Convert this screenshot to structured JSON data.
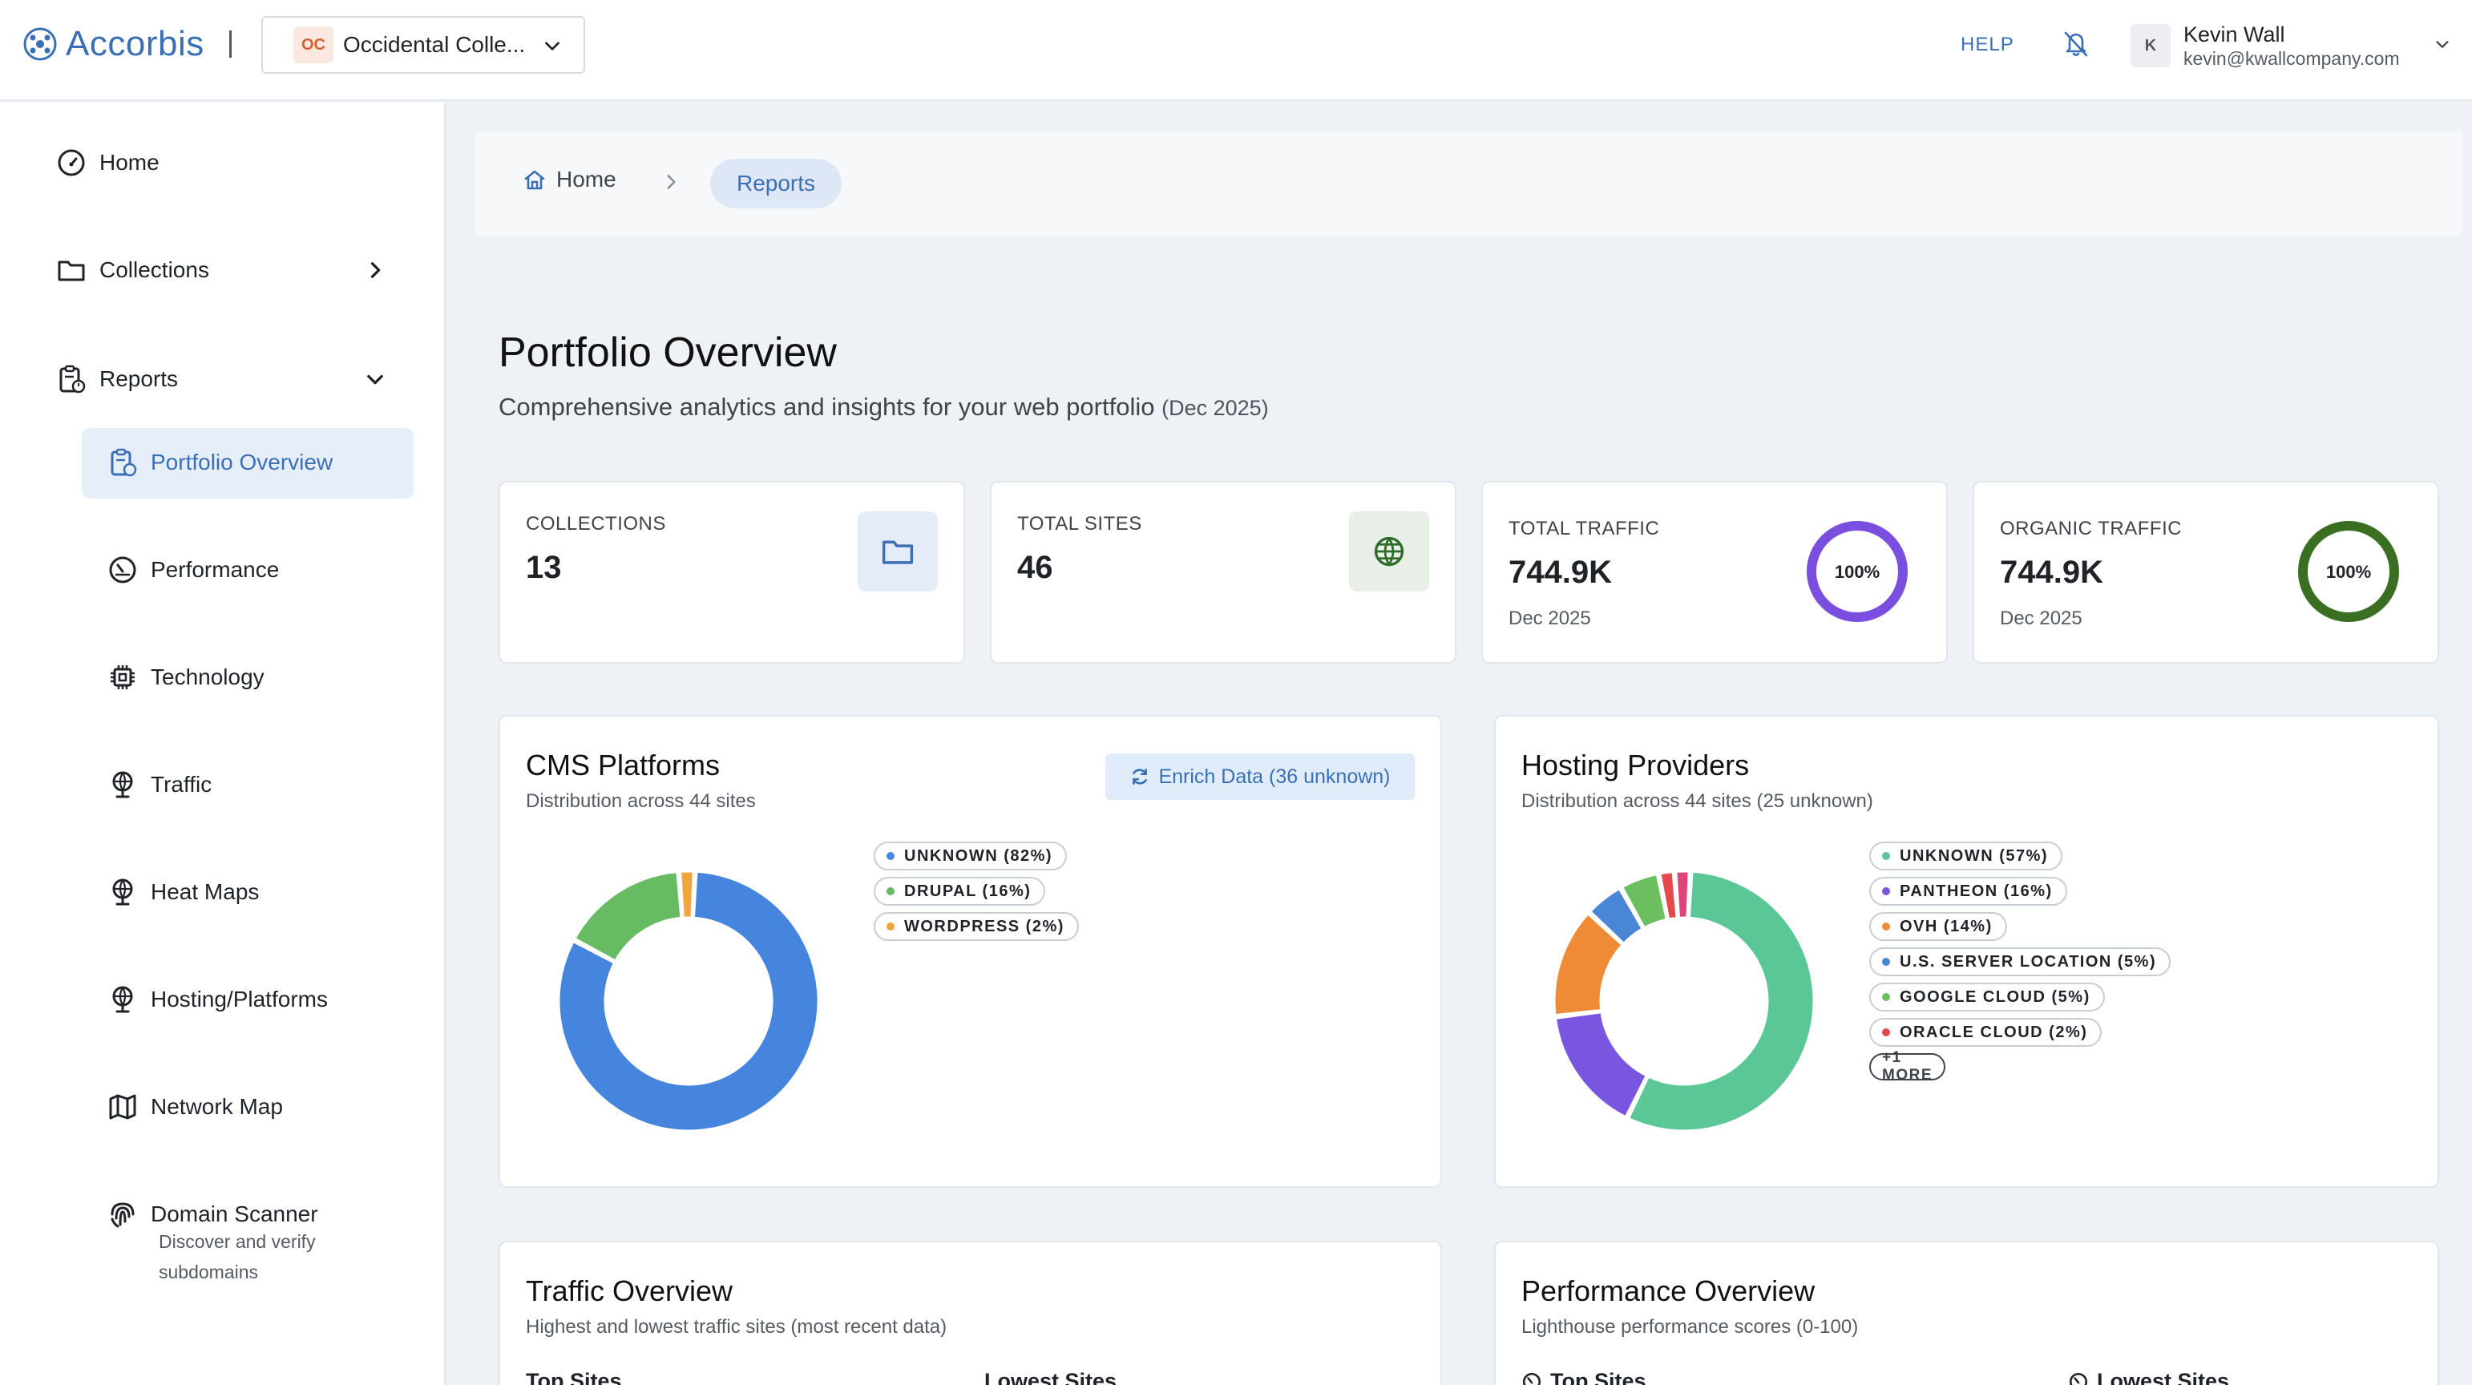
{
  "header": {
    "logo_text": "Accorbis",
    "org": {
      "badge": "OC",
      "name": "Occidental Colle..."
    },
    "help_label": "HELP",
    "user": {
      "initial": "K",
      "name": "Kevin Wall",
      "email": "kevin@kwallcompany.com"
    }
  },
  "sidebar": {
    "home": "Home",
    "collections": "Collections",
    "reports": "Reports",
    "sub": {
      "portfolio_overview": "Portfolio Overview",
      "performance": "Performance",
      "technology": "Technology",
      "traffic": "Traffic",
      "heat_maps": "Heat Maps",
      "hosting_platforms": "Hosting/Platforms",
      "network_map": "Network Map",
      "domain_scanner": "Domain Scanner",
      "domain_scanner_desc_1": "Discover and verify",
      "domain_scanner_desc_2": "subdomains"
    }
  },
  "breadcrumb": {
    "home": "Home",
    "current": "Reports"
  },
  "page": {
    "title": "Portfolio Overview",
    "subtitle": "Comprehensive analytics and insights for your web portfolio",
    "period": "(Dec 2025)"
  },
  "stats": {
    "collections": {
      "label": "COLLECTIONS",
      "value": "13",
      "color": "#3b6fb5"
    },
    "total_sites": {
      "label": "TOTAL SITES",
      "value": "46",
      "color": "#2f6b2a"
    },
    "total_traffic": {
      "label": "TOTAL TRAFFIC",
      "value": "744.9K",
      "date": "Dec 2025",
      "percent": 100,
      "percent_label": "100%",
      "color": "#7a4fe0"
    },
    "organic_traffic": {
      "label": "ORGANIC TRAFFIC",
      "value": "744.9K",
      "date": "Dec 2025",
      "percent": 100,
      "percent_label": "100%",
      "color": "#3a6e20"
    }
  },
  "cms": {
    "title": "CMS Platforms",
    "subtitle": "Distribution across 44 sites",
    "enrich_label": "Enrich Data (36 unknown)",
    "slices": [
      {
        "label": "UNKNOWN (82%)",
        "value": 82,
        "color": "#4585de"
      },
      {
        "label": "DRUPAL (16%)",
        "value": 16,
        "color": "#66bb63"
      },
      {
        "label": "WORDPRESS (2%)",
        "value": 2,
        "color": "#f2a53a"
      }
    ]
  },
  "hosting": {
    "title": "Hosting Providers",
    "subtitle": "Distribution across 44 sites (25 unknown)",
    "slices": [
      {
        "label": "UNKNOWN (57%)",
        "value": 57,
        "color": "#5cc796"
      },
      {
        "label": "PANTHEON (16%)",
        "value": 16,
        "color": "#7a55e0"
      },
      {
        "label": "OVH (14%)",
        "value": 14,
        "color": "#ef8a37"
      },
      {
        "label": "U.S. SERVER LOCATION (5%)",
        "value": 5,
        "color": "#4a86d6"
      },
      {
        "label": "GOOGLE CLOUD (5%)",
        "value": 5,
        "color": "#6bbf5e"
      },
      {
        "label": "ORACLE CLOUD (2%)",
        "value": 2,
        "color": "#e5484d"
      }
    ],
    "extra_slices": [
      {
        "value": 2,
        "color": "#e0457a"
      }
    ],
    "more_label": "+1 MORE"
  },
  "traffic_overview": {
    "title": "Traffic Overview",
    "subtitle": "Highest and lowest traffic sites (most recent data)",
    "top_label": "Top Sites",
    "lowest_label": "Lowest Sites"
  },
  "performance_overview": {
    "title": "Performance Overview",
    "subtitle": "Lighthouse performance scores (0-100)",
    "top_label": "Top Sites",
    "lowest_label": "Lowest Sites"
  }
}
